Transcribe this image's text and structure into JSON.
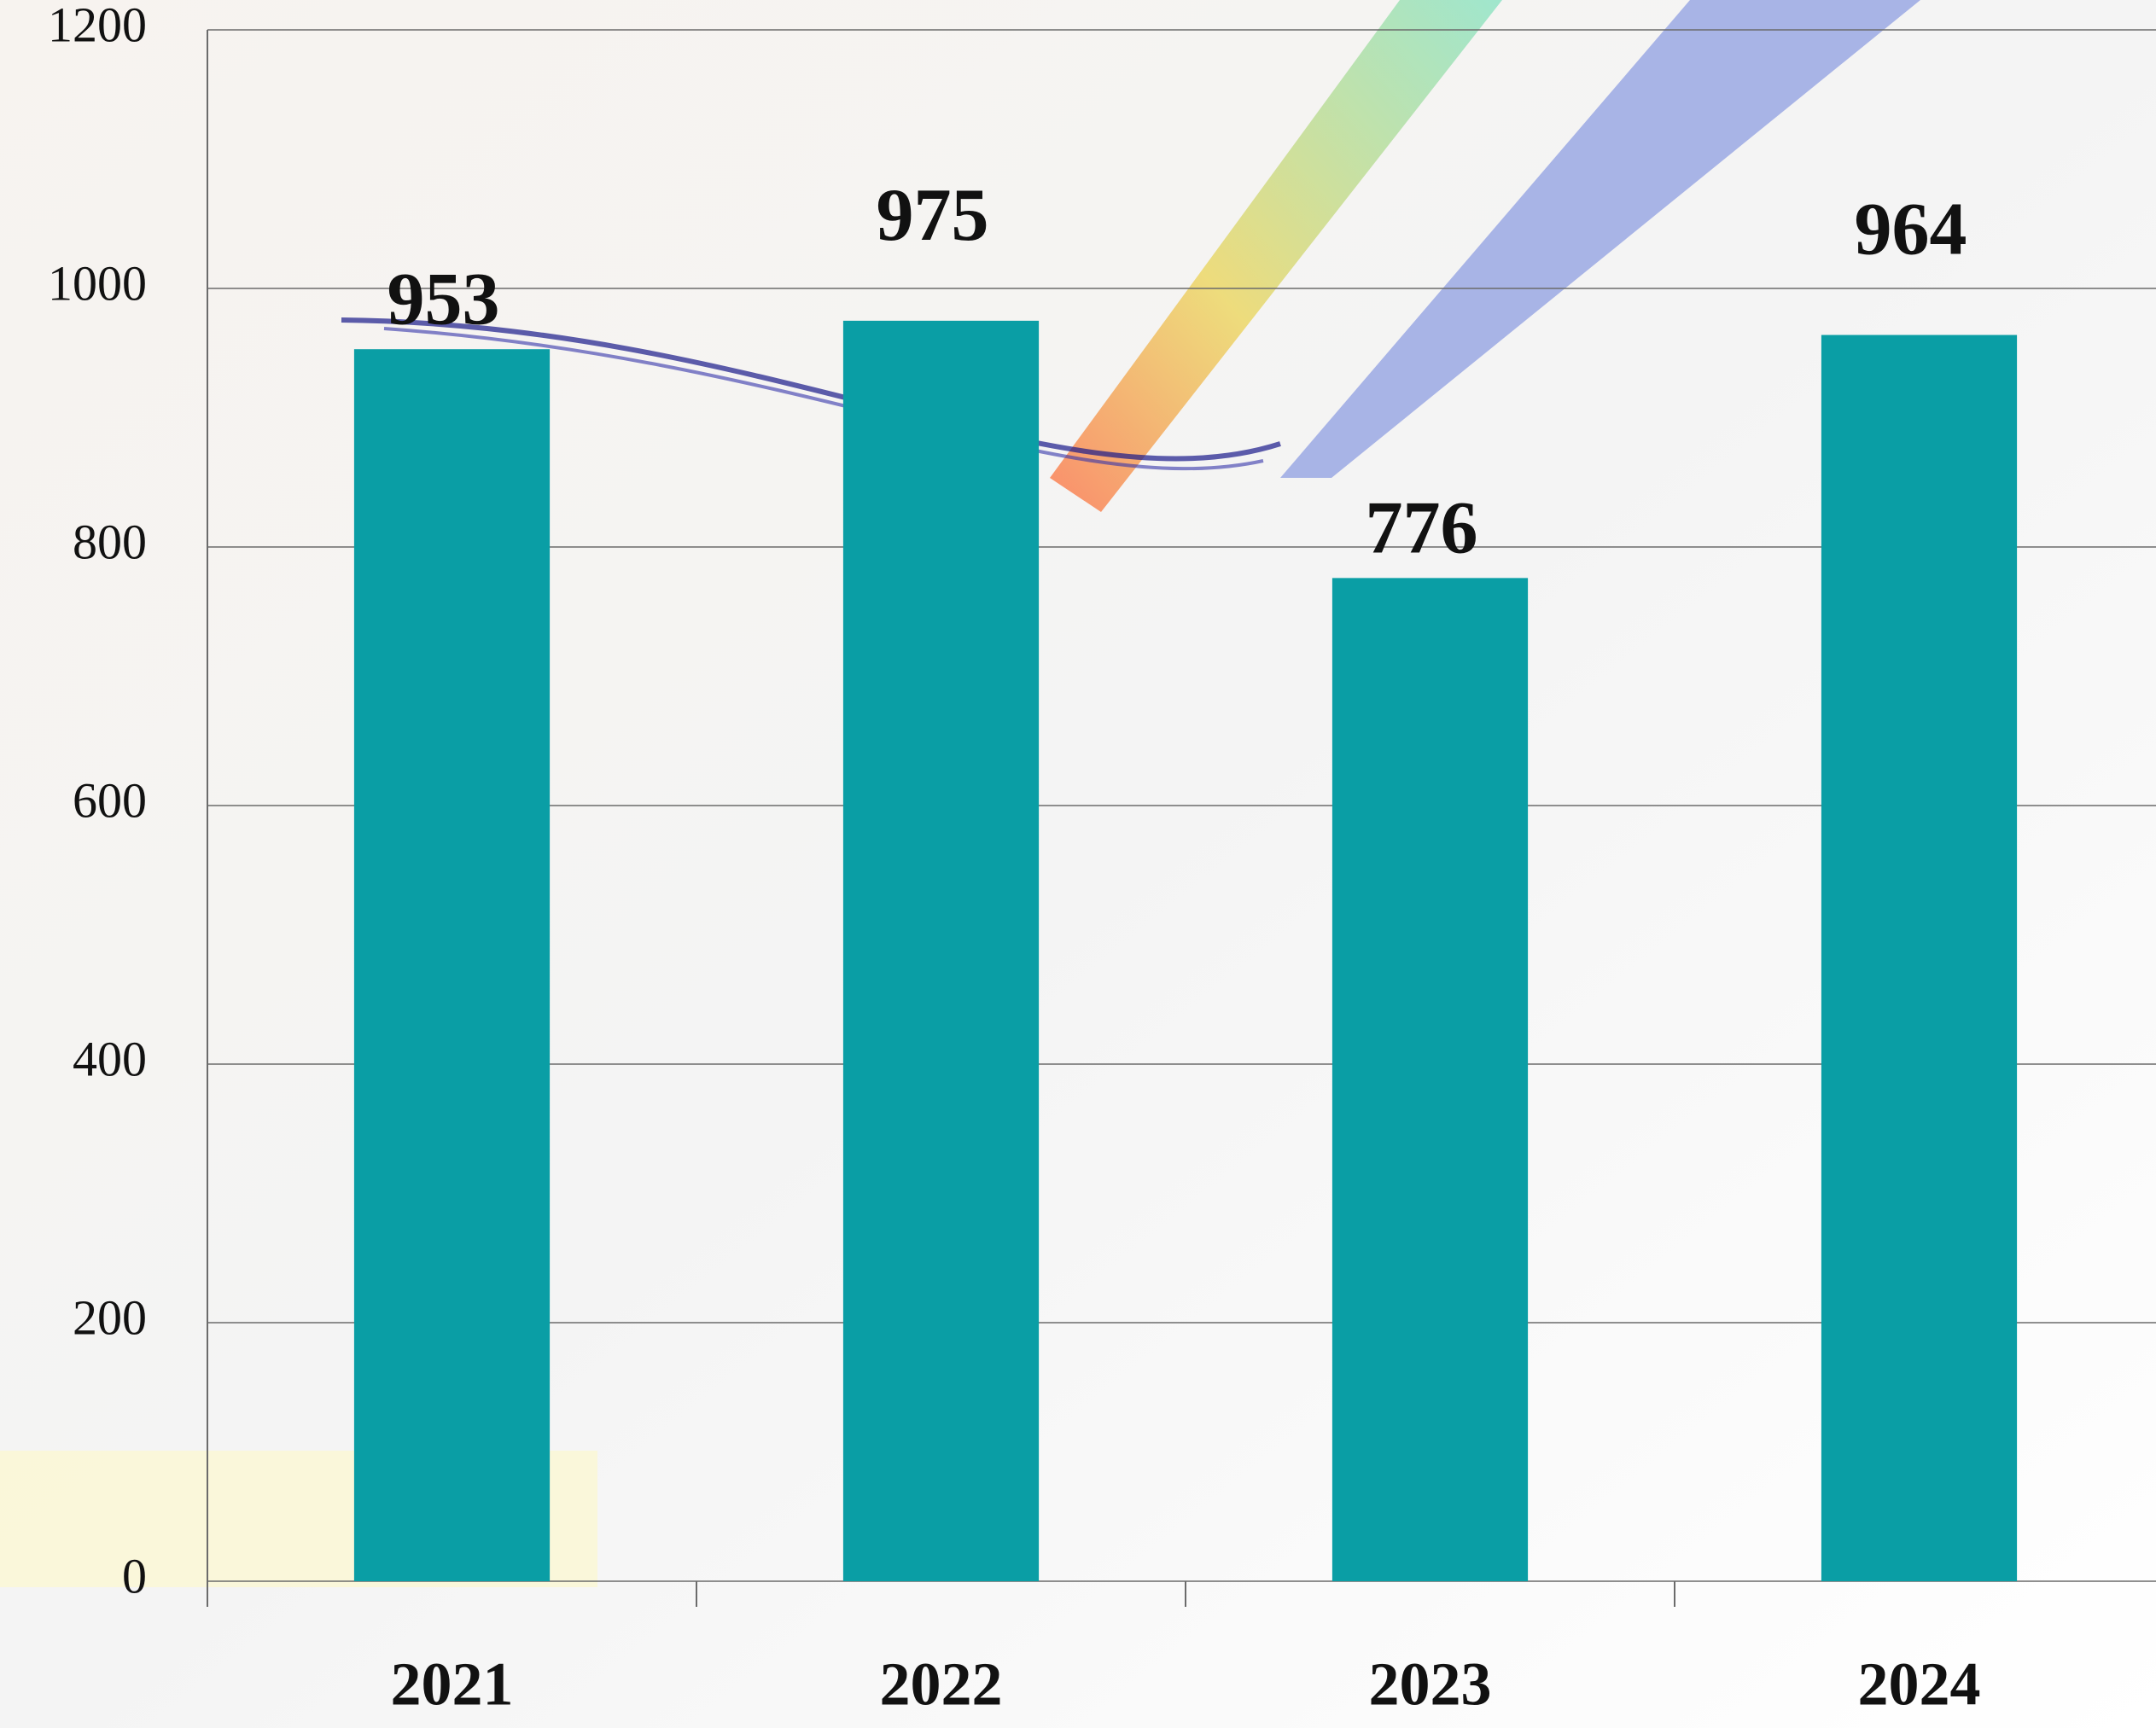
{
  "chart_data": {
    "type": "bar",
    "categories": [
      "2021",
      "2022",
      "2023",
      "2024"
    ],
    "values": [
      953,
      975,
      776,
      964
    ],
    "color": "#0a9ea5",
    "ylim": [
      0,
      1200
    ],
    "yticks": [
      0,
      200,
      400,
      600,
      800,
      1000,
      1200
    ],
    "grid": true
  }
}
